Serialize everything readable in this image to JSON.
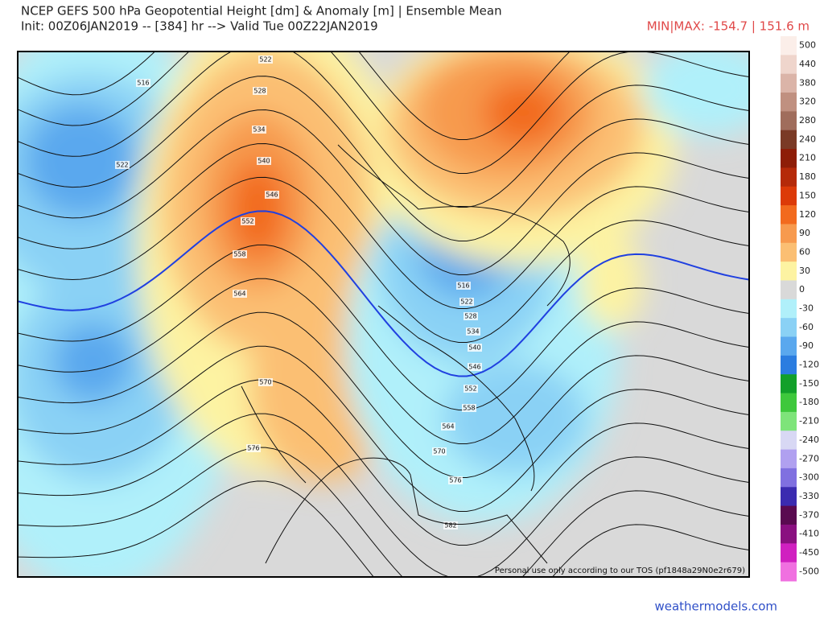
{
  "header": {
    "title": "NCEP GEFS 500 hPa Geopotential Height [dm] & Anomaly [m] | Ensemble Mean",
    "subtitle": "Init: 00Z06JAN2019 -- [384] hr --> Valid Tue 00Z22JAN2019",
    "minmax": "MIN|MAX: -154.7 | 151.6 m"
  },
  "colorbar": {
    "levels": [
      500,
      440,
      380,
      320,
      280,
      240,
      210,
      180,
      150,
      120,
      90,
      60,
      30,
      0,
      -30,
      -60,
      -90,
      -120,
      -150,
      -180,
      -210,
      -240,
      -270,
      -300,
      -330,
      -370,
      -410,
      -450,
      -500
    ],
    "colors": [
      "#fbeee9",
      "#efd5cc",
      "#dbb4a8",
      "#c09080",
      "#a06d5c",
      "#7a3a26",
      "#8e1d07",
      "#b52a09",
      "#dc3a08",
      "#f26a1e",
      "#f79a4e",
      "#fbbf73",
      "#fdf3a2",
      "#d9d9d9",
      "#b0f0fa",
      "#8ad1f5",
      "#5aa8ee",
      "#2b7de0",
      "#12a02a",
      "#3ec83c",
      "#7ee47a",
      "#d8d8f4",
      "#b0a0f0",
      "#8070e0",
      "#3b2bb0",
      "#5a0a50",
      "#8a1080",
      "#d020c0",
      "#f070e0"
    ]
  },
  "contour_labels": [
    522,
    516,
    528,
    534,
    522,
    540,
    546,
    552,
    558,
    564,
    570,
    576,
    582,
    516,
    522,
    528,
    534,
    540,
    546,
    552,
    558,
    564,
    570,
    576
  ],
  "footer": {
    "tos": "Personal use only according to our TOS (pf1848a29N0e2r679)",
    "site": "weathermodels.com"
  }
}
